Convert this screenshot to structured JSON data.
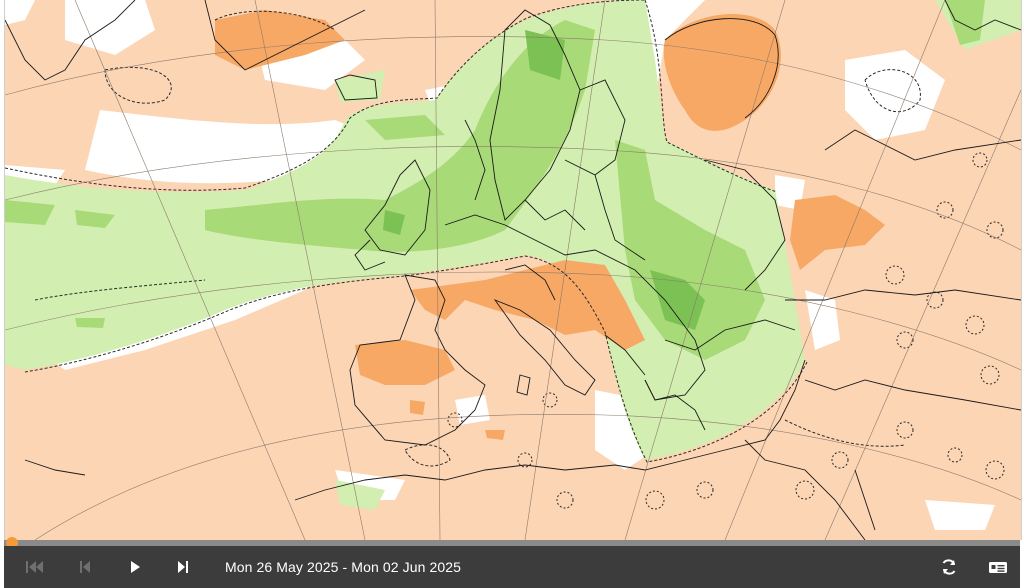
{
  "map": {
    "description_icon": "forecast-anomaly-map",
    "colors": {
      "warm_anomaly_light": "#fcd5b5",
      "warm_anomaly_strong": "#f7a865",
      "wet_anomaly_light": "#d2eeb0",
      "wet_anomaly_strong": "#a8da78",
      "wet_anomaly_stronger": "#7cc153",
      "neutral": "#ffffff",
      "coastline": "#1a1a1a",
      "graticule": "#8c7a6b"
    }
  },
  "player": {
    "progress_fraction": 0.0,
    "date_range": "Mon 26 May 2025 - Mon 02 Jun 2025",
    "buttons": {
      "first": "skip-to-start-icon",
      "previous": "step-back-icon",
      "play": "play-icon",
      "last": "skip-to-end-icon",
      "loop": "loop-icon",
      "legend": "legend-icon"
    },
    "colors": {
      "bar_background": "#3c3c3c",
      "track": "#8a8a8a",
      "accent": "#f39a3a",
      "icon_active": "#ffffff",
      "icon_disabled": "#6f6f6f"
    }
  }
}
